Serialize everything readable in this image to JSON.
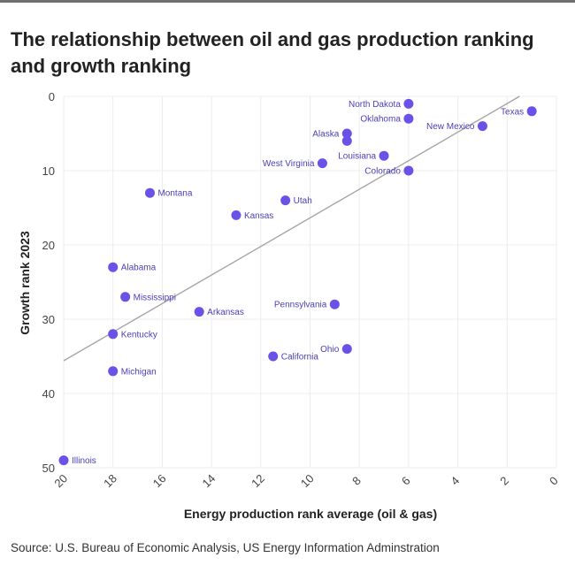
{
  "title": "The relationship between oil and gas production ranking and growth ranking",
  "source": "Source: U.S. Bureau of Economic Analysis, US Energy Information Adminstration",
  "chart_data": {
    "type": "scatter",
    "xlabel": "Energy production rank average (oil & gas)",
    "ylabel": "Growth rank 2023",
    "xlim": [
      20,
      0
    ],
    "ylim": [
      0,
      50
    ],
    "x_reversed": true,
    "y_reversed": true,
    "x_ticks": [
      20,
      18,
      16,
      14,
      12,
      10,
      8,
      6,
      4,
      2,
      0
    ],
    "y_ticks": [
      0,
      10,
      20,
      30,
      40,
      50
    ],
    "grid": true,
    "point_color": "#6a52e8",
    "trendline_color": "#a6a6a6",
    "trendline": [
      [
        20,
        35.6
      ],
      [
        1.5,
        0
      ]
    ],
    "points": [
      {
        "label": "North Dakota",
        "x": 6,
        "y": 1,
        "side": "left"
      },
      {
        "label": "Texas",
        "x": 1,
        "y": 2,
        "side": "left"
      },
      {
        "label": "Oklahoma",
        "x": 6,
        "y": 3,
        "side": "left"
      },
      {
        "label": "New Mexico",
        "x": 3,
        "y": 4,
        "side": "left"
      },
      {
        "label": "Alaska",
        "x": 8.5,
        "y": 5,
        "side": "left"
      },
      {
        "label": "",
        "x": 8.5,
        "y": 6,
        "side": "left"
      },
      {
        "label": "Louisiana",
        "x": 7,
        "y": 8,
        "side": "left"
      },
      {
        "label": "West Virginia",
        "x": 9.5,
        "y": 9,
        "side": "left"
      },
      {
        "label": "Colorado",
        "x": 6,
        "y": 10,
        "side": "left"
      },
      {
        "label": "Montana",
        "x": 16.5,
        "y": 13,
        "side": "right"
      },
      {
        "label": "Utah",
        "x": 11,
        "y": 14,
        "side": "right"
      },
      {
        "label": "Kansas",
        "x": 13,
        "y": 16,
        "side": "right"
      },
      {
        "label": "Alabama",
        "x": 18,
        "y": 23,
        "side": "right"
      },
      {
        "label": "Mississippi",
        "x": 17.5,
        "y": 27,
        "side": "right"
      },
      {
        "label": "Pennsylvania",
        "x": 9,
        "y": 28,
        "side": "left"
      },
      {
        "label": "Arkansas",
        "x": 14.5,
        "y": 29,
        "side": "right"
      },
      {
        "label": "Kentucky",
        "x": 18,
        "y": 32,
        "side": "right"
      },
      {
        "label": "Ohio",
        "x": 8.5,
        "y": 34,
        "side": "left"
      },
      {
        "label": "California",
        "x": 11.5,
        "y": 35,
        "side": "right"
      },
      {
        "label": "Michigan",
        "x": 18,
        "y": 37,
        "side": "right"
      },
      {
        "label": "Illinois",
        "x": 20,
        "y": 49,
        "side": "right"
      }
    ]
  }
}
